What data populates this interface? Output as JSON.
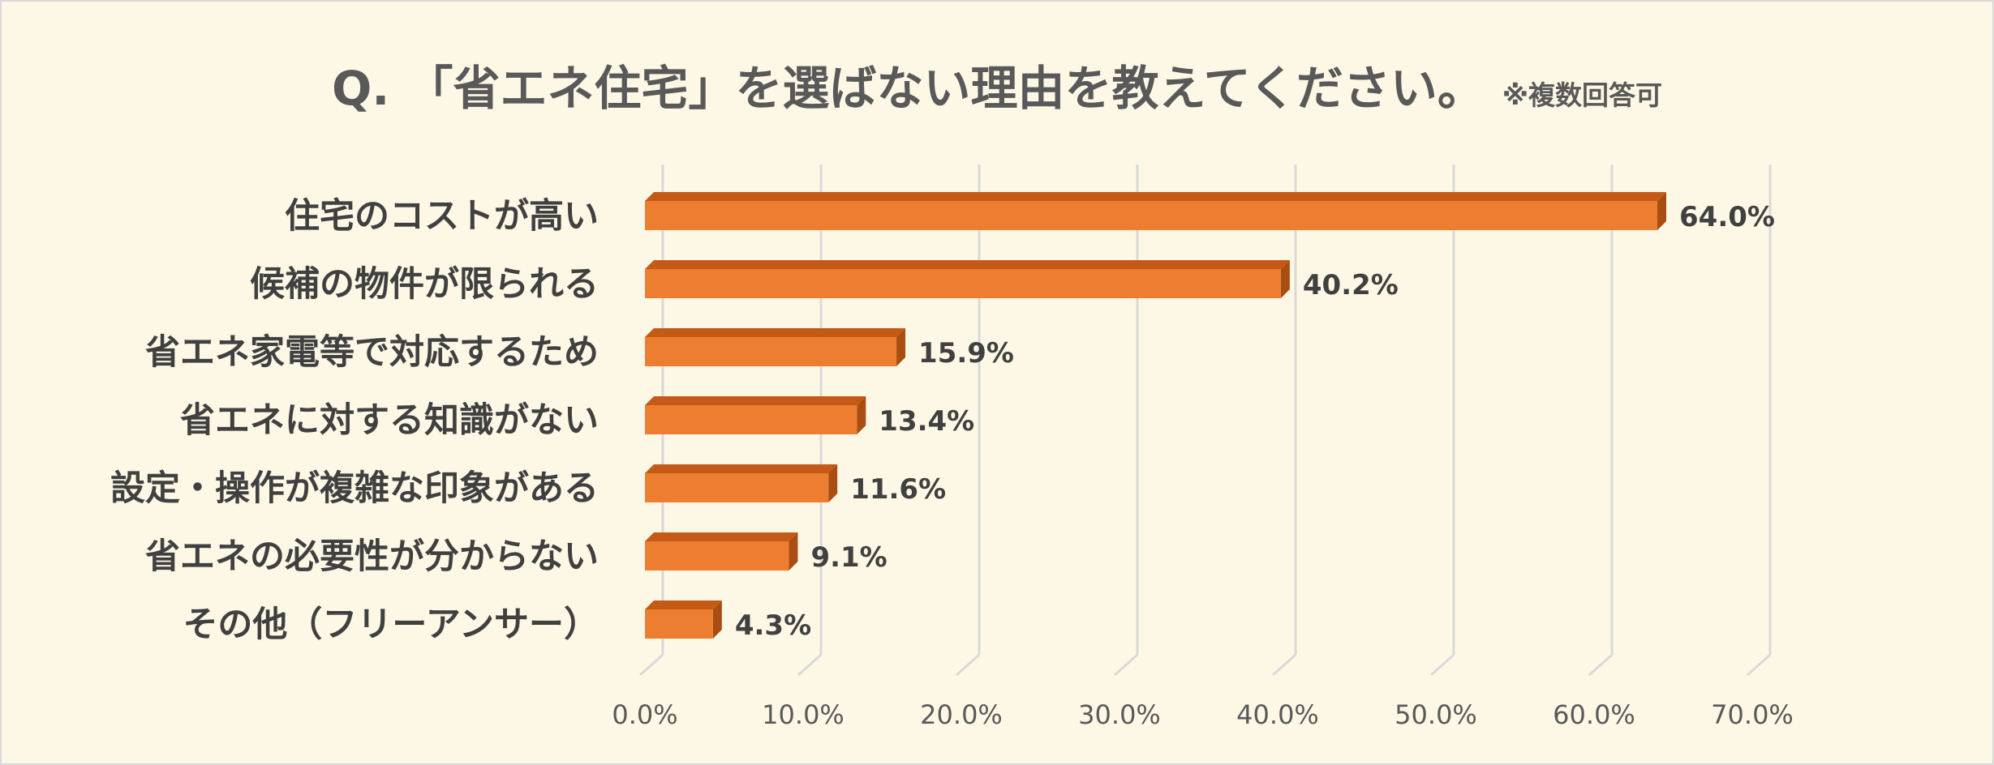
{
  "chart_data": {
    "type": "bar",
    "orientation": "horizontal",
    "title": "Q. 「省エネ住宅」を選ばない理由を教えてください。",
    "subtitle": "※複数回答可",
    "categories": [
      "住宅のコストが高い",
      "候補の物件が限られる",
      "省エネ家電等で対応するため",
      "省エネに対する知識がない",
      "設定・操作が複雑な印象がある",
      "省エネの必要性が分からない",
      "その他（フリーアンサー）"
    ],
    "values": [
      64.0,
      40.2,
      15.9,
      13.4,
      11.6,
      9.1,
      4.3
    ],
    "value_labels": [
      "64.0%",
      "40.2%",
      "15.9%",
      "13.4%",
      "11.6%",
      "9.1%",
      "4.3%"
    ],
    "x_ticks": [
      "0.0%",
      "10.0%",
      "20.0%",
      "30.0%",
      "40.0%",
      "50.0%",
      "60.0%",
      "70.0%"
    ],
    "xlim": [
      0,
      70
    ],
    "unit": "%",
    "grid": true,
    "style": "3d-bar",
    "colors": {
      "background": "#fdf8e6",
      "bar_front": "#ed7d31",
      "bar_top": "#c45a16",
      "bar_side": "#a94e12",
      "gridline": "#d9d9d9",
      "text": "#404040",
      "title": "#595959"
    }
  }
}
